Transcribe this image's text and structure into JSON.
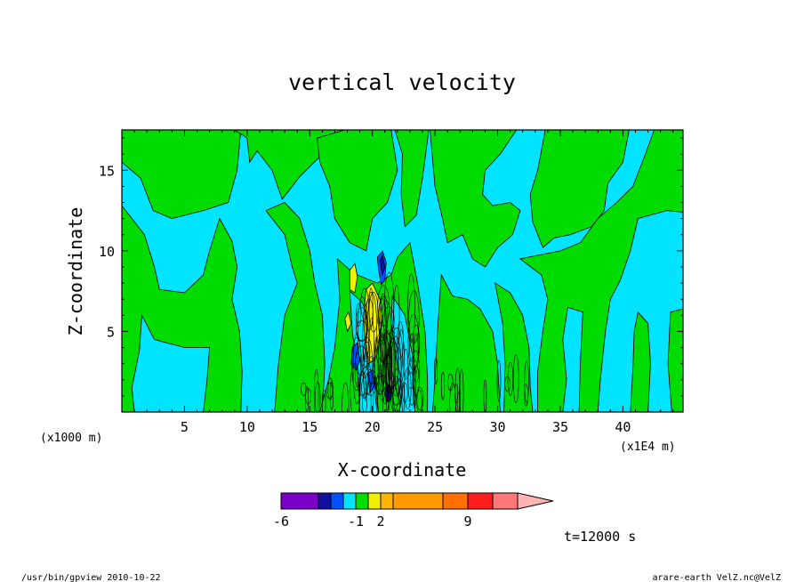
{
  "footer": {
    "left": "/usr/bin/gpview   2010-10-22",
    "right": "arare-earth_VelZ.nc@VelZ"
  },
  "time_label": "t=12000 s",
  "chart_data": {
    "type": "heatmap",
    "title": "vertical velocity",
    "xlabel": "X-coordinate",
    "ylabel": "Z-coordinate",
    "x_unit_label": "(x1E4 m)",
    "y_unit_label": "(x1000 m)",
    "xlim": [
      0,
      44.8
    ],
    "ylim": [
      0,
      17.5
    ],
    "x_ticks": [
      5,
      10,
      15,
      20,
      25,
      30,
      35,
      40
    ],
    "y_ticks": [
      5,
      10,
      15
    ],
    "grid": false,
    "field_description_levels": "shaded contours of vertical velocity; cyan = slightly negative, green = slightly positive, strong updraft/downdraft cells near x=18-23",
    "colorbar": {
      "position": "bottom",
      "colors": [
        "#7a00c8",
        "#1010a0",
        "#0050ff",
        "#00e4ff",
        "#00dc00",
        "#f0f000",
        "#ffb400",
        "#ff9a00",
        "#ff7000",
        "#ff1e1e",
        "#ff7878",
        "#ffb4b4"
      ],
      "tick_labels": [
        "-6",
        "-1",
        "2",
        "9"
      ],
      "extend": "max"
    },
    "regions": [
      {
        "level": "negative_small",
        "color": "#00e4ff"
      },
      {
        "level": "positive_small",
        "color": "#00dc00"
      },
      {
        "level": "positive_medium",
        "color": "#f0f000"
      },
      {
        "level": "negative_medium",
        "color": "#0050ff"
      },
      {
        "level": "negative_strong",
        "color": "#1010a0"
      }
    ]
  }
}
